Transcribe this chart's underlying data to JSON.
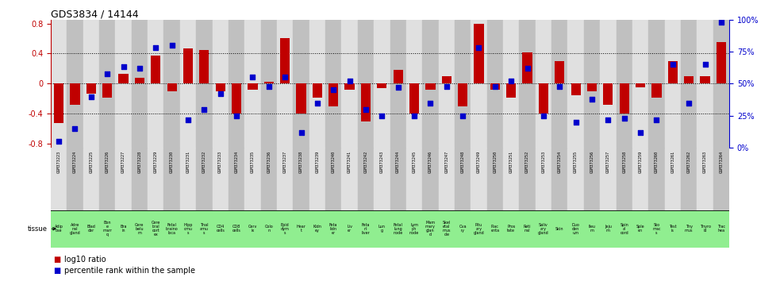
{
  "title": "GDS3834 / 14144",
  "gsm_ids": [
    "GSM373223",
    "GSM373224",
    "GSM373225",
    "GSM373226",
    "GSM373227",
    "GSM373228",
    "GSM373229",
    "GSM373230",
    "GSM373231",
    "GSM373232",
    "GSM373233",
    "GSM373234",
    "GSM373235",
    "GSM373236",
    "GSM373237",
    "GSM373238",
    "GSM373239",
    "GSM373240",
    "GSM373241",
    "GSM373242",
    "GSM373243",
    "GSM373244",
    "GSM373245",
    "GSM373246",
    "GSM373247",
    "GSM373248",
    "GSM373249",
    "GSM373250",
    "GSM373251",
    "GSM373252",
    "GSM373253",
    "GSM373254",
    "GSM373255",
    "GSM373256",
    "GSM373257",
    "GSM373258",
    "GSM373259",
    "GSM373260",
    "GSM373261",
    "GSM373262",
    "GSM373263",
    "GSM373264"
  ],
  "tissues": [
    "Adip\nose",
    "Adre\nnal\ngland",
    "Blad\nder",
    "Bon\ne\nmarr\nq",
    "Bra\nin",
    "Cere\nbelu\nm",
    "Cere\nbral\ncort\nex",
    "Fetal\nbraino\nloca",
    "Hipp\nomu\ns",
    "Thal\namu\ns",
    "CD4\ncells",
    "CD8\ncells",
    "Cerv\nix",
    "Colo\nn",
    "Epid\ndym\ns",
    "Hear\nt",
    "Kidn\ney",
    "Feta\nlidn\ner",
    "Liv\ner",
    "Feta\nnl\nliver",
    "Lun\ng",
    "Fetal\nlung\nnode",
    "Lym\nph\nnode",
    "Mam\nmary\nglan\nd",
    "Skel\netal\nmus\ncle",
    "Ova\nry",
    "Pitu\nary\ngland",
    "Plac\nenta",
    "Pros\ntate",
    "Reti\nnal",
    "Saliv\nary\ngland",
    "Skin",
    "Duo\nden\num",
    "Ileu\nm",
    "Jeju\nm",
    "Spin\nal\ncord",
    "Sple\nen",
    "Sto\nmac\ns",
    "Test\nis",
    "Thy\nmus",
    "Thyro\nid",
    "Trac\nhea"
  ],
  "log10_ratio": [
    -0.52,
    -0.28,
    -0.13,
    -0.18,
    0.13,
    0.08,
    0.37,
    -0.1,
    0.47,
    0.45,
    -0.1,
    -0.4,
    -0.08,
    0.03,
    0.6,
    -0.4,
    -0.18,
    -0.3,
    -0.08,
    -0.5,
    -0.06,
    0.18,
    -0.4,
    -0.08,
    0.1,
    -0.3,
    0.8,
    -0.08,
    -0.18,
    0.42,
    -0.4,
    0.3,
    -0.15,
    -0.1,
    -0.28,
    -0.4,
    -0.05,
    -0.18,
    0.3,
    0.1,
    0.1,
    0.55
  ],
  "percentile": [
    5,
    15,
    40,
    58,
    63,
    62,
    78,
    80,
    22,
    30,
    42,
    25,
    55,
    48,
    55,
    12,
    35,
    45,
    52,
    30,
    25,
    47,
    25,
    35,
    48,
    25,
    78,
    48,
    52,
    62,
    25,
    48,
    20,
    38,
    22,
    23,
    12,
    22,
    65,
    35,
    65,
    98
  ],
  "bar_color": "#c00000",
  "dot_color": "#0000cc",
  "bg_color_light": "#e0e0e0",
  "bg_color_dark": "#c0c0c0",
  "tissue_bg_color": "#90ee90",
  "ylim": [
    -0.85,
    0.85
  ],
  "yticks": [
    -0.8,
    -0.4,
    0.0,
    0.4,
    0.8
  ],
  "y2ticks": [
    0,
    25,
    50,
    75,
    100
  ],
  "dotted_lines": [
    -0.4,
    0.0,
    0.4
  ],
  "legend_red": "log10 ratio",
  "legend_blue": "percentile rank within the sample"
}
